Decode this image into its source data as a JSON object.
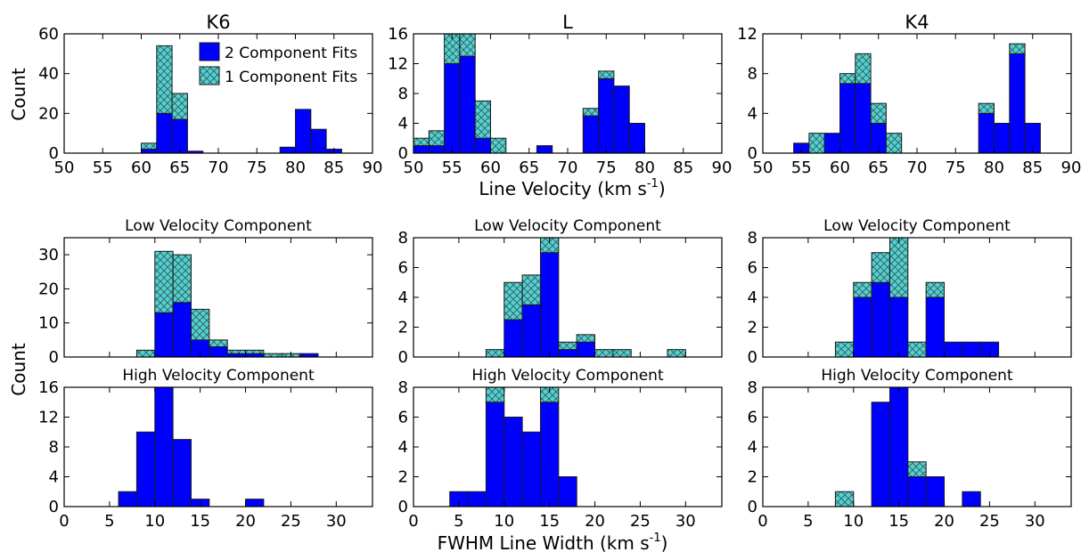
{
  "figure": {
    "top_ylabel": "Count",
    "top_xlabel": "Line Velocity (km s",
    "top_xlabel_sup": "-1",
    "top_xlabel_close": ")",
    "bottom_ylabel": "Count",
    "bottom_xlabel": "FWHM Line Width (km s",
    "bottom_xlabel_sup": "-1",
    "bottom_xlabel_close": ")",
    "legend": {
      "two": "2 Component Fits",
      "one": "1 Component Fits",
      "placement": "top-right of K6 panel"
    },
    "colors": {
      "two": "#0000ff",
      "one": "#55cfcf",
      "hatch": "#2f5f5f",
      "edge": "#1a1a1a",
      "axis": "#000000"
    }
  },
  "chart_data": [
    {
      "id": "vel-K6",
      "type": "bar",
      "stacked": true,
      "title": "K6",
      "xlim": [
        50,
        90
      ],
      "ylim": [
        0,
        60
      ],
      "xticks": [
        50,
        55,
        60,
        65,
        70,
        75,
        80,
        85,
        90
      ],
      "yticks": [
        0,
        20,
        40,
        60
      ],
      "bin_width": 2,
      "bins": [
        61,
        63,
        65,
        67,
        79,
        81,
        83,
        85
      ],
      "series": [
        {
          "name": "2 Component Fits",
          "values": [
            2,
            20,
            17,
            1,
            3,
            22,
            12,
            2
          ]
        },
        {
          "name": "1 Component Fits",
          "values": [
            3,
            34,
            13,
            0,
            0,
            0,
            0,
            0
          ]
        }
      ]
    },
    {
      "id": "vel-L",
      "type": "bar",
      "stacked": true,
      "title": "L",
      "xlim": [
        50,
        90
      ],
      "ylim": [
        0,
        16
      ],
      "xticks": [
        50,
        55,
        60,
        65,
        70,
        75,
        80,
        85,
        90
      ],
      "yticks": [
        0,
        4,
        8,
        12,
        16
      ],
      "bin_width": 2,
      "bins": [
        51,
        53,
        55,
        57,
        59,
        61,
        67,
        73,
        75,
        77,
        79
      ],
      "series": [
        {
          "name": "2 Component Fits",
          "values": [
            1,
            1,
            12,
            13,
            2,
            0,
            1,
            5,
            10,
            9,
            4
          ]
        },
        {
          "name": "1 Component Fits",
          "values": [
            1,
            2,
            4,
            3,
            5,
            2,
            0,
            1,
            1,
            0,
            0
          ]
        }
      ]
    },
    {
      "id": "vel-K4",
      "type": "bar",
      "stacked": true,
      "title": "K4",
      "xlim": [
        50,
        90
      ],
      "ylim": [
        0,
        12
      ],
      "xticks": [
        50,
        55,
        60,
        65,
        70,
        75,
        80,
        85,
        90
      ],
      "yticks": [
        0,
        4,
        8,
        12
      ],
      "bin_width": 2,
      "bins": [
        55,
        57,
        59,
        61,
        63,
        65,
        67,
        79,
        81,
        83,
        85
      ],
      "series": [
        {
          "name": "2 Component Fits",
          "values": [
            1,
            0,
            2,
            7,
            7,
            3,
            0,
            4,
            3,
            10,
            3
          ]
        },
        {
          "name": "1 Component Fits",
          "values": [
            0,
            2,
            0,
            1,
            3,
            2,
            2,
            1,
            0,
            1,
            0
          ]
        }
      ]
    },
    {
      "id": "low-K6",
      "type": "bar",
      "stacked": true,
      "title": "Low Velocity Component",
      "xlim": [
        0,
        34
      ],
      "ylim": [
        0,
        35
      ],
      "xticks": [],
      "yticks": [
        0,
        10,
        20,
        30
      ],
      "bin_width": 2,
      "bins": [
        9,
        11,
        13,
        15,
        17,
        19,
        21,
        23,
        25,
        27
      ],
      "series": [
        {
          "name": "2 Component Fits",
          "values": [
            0,
            13,
            16,
            5,
            3,
            1,
            1,
            0,
            0,
            1
          ]
        },
        {
          "name": "1 Component Fits",
          "values": [
            2,
            18,
            14,
            9,
            2,
            1,
            1,
            1,
            1,
            0
          ]
        }
      ]
    },
    {
      "id": "low-L",
      "type": "bar",
      "stacked": true,
      "title": "Low Velocity Component",
      "xlim": [
        0,
        34
      ],
      "ylim": [
        0,
        8
      ],
      "xticks": [],
      "yticks": [
        0,
        2,
        4,
        6,
        8
      ],
      "bin_width": 2,
      "bins": [
        9,
        11,
        13,
        15,
        17,
        19,
        21,
        23,
        29
      ],
      "series": [
        {
          "name": "2 Component Fits",
          "values": [
            0,
            2.5,
            3.5,
            7,
            0.5,
            1,
            0,
            0,
            0
          ]
        },
        {
          "name": "1 Component Fits",
          "values": [
            0.5,
            2.5,
            2,
            1,
            0.5,
            0.5,
            0.5,
            0.5,
            0.5
          ]
        }
      ]
    },
    {
      "id": "low-K4",
      "type": "bar",
      "stacked": true,
      "title": "Low Velocity Component",
      "xlim": [
        0,
        34
      ],
      "ylim": [
        0,
        8
      ],
      "xticks": [],
      "yticks": [
        0,
        2,
        4,
        6,
        8
      ],
      "bin_width": 2,
      "bins": [
        9,
        11,
        13,
        15,
        17,
        19,
        21,
        23,
        25
      ],
      "series": [
        {
          "name": "2 Component Fits",
          "values": [
            0,
            4,
            5,
            4,
            0,
            4,
            1,
            1,
            1
          ]
        },
        {
          "name": "1 Component Fits",
          "values": [
            1,
            1,
            2,
            4,
            1,
            1,
            0,
            0,
            0
          ]
        }
      ]
    },
    {
      "id": "high-K6",
      "type": "bar",
      "stacked": true,
      "title": "High Velocity Component",
      "xlim": [
        0,
        34
      ],
      "ylim": [
        0,
        16
      ],
      "xticks": [
        0,
        5,
        10,
        15,
        20,
        25,
        30
      ],
      "yticks": [
        0,
        4,
        8,
        12,
        16
      ],
      "bin_width": 2,
      "bins": [
        7,
        9,
        11,
        13,
        15,
        21
      ],
      "series": [
        {
          "name": "2 Component Fits",
          "values": [
            2,
            10,
            16,
            9,
            1,
            1
          ]
        },
        {
          "name": "1 Component Fits",
          "values": [
            0,
            0,
            0,
            0,
            0,
            0
          ]
        }
      ]
    },
    {
      "id": "high-L",
      "type": "bar",
      "stacked": true,
      "title": "High Velocity Component",
      "xlim": [
        0,
        34
      ],
      "ylim": [
        0,
        8
      ],
      "xticks": [
        0,
        5,
        10,
        15,
        20,
        25,
        30
      ],
      "yticks": [
        0,
        2,
        4,
        6,
        8
      ],
      "bin_width": 2,
      "bins": [
        5,
        7,
        9,
        11,
        13,
        15,
        17
      ],
      "series": [
        {
          "name": "2 Component Fits",
          "values": [
            1,
            1,
            7,
            6,
            5,
            7,
            2
          ]
        },
        {
          "name": "1 Component Fits",
          "values": [
            0,
            0,
            1,
            0,
            0,
            1,
            0
          ]
        }
      ]
    },
    {
      "id": "high-K4",
      "type": "bar",
      "stacked": true,
      "title": "High Velocity Component",
      "xlim": [
        0,
        34
      ],
      "ylim": [
        0,
        8
      ],
      "xticks": [
        0,
        5,
        10,
        15,
        20,
        25,
        30
      ],
      "yticks": [
        0,
        2,
        4,
        6,
        8
      ],
      "bin_width": 2,
      "bins": [
        9,
        13,
        15,
        17,
        19,
        23
      ],
      "series": [
        {
          "name": "2 Component Fits",
          "values": [
            0,
            7,
            8,
            2,
            2,
            1
          ]
        },
        {
          "name": "1 Component Fits",
          "values": [
            1,
            0,
            0,
            1,
            0,
            0
          ]
        }
      ]
    }
  ]
}
